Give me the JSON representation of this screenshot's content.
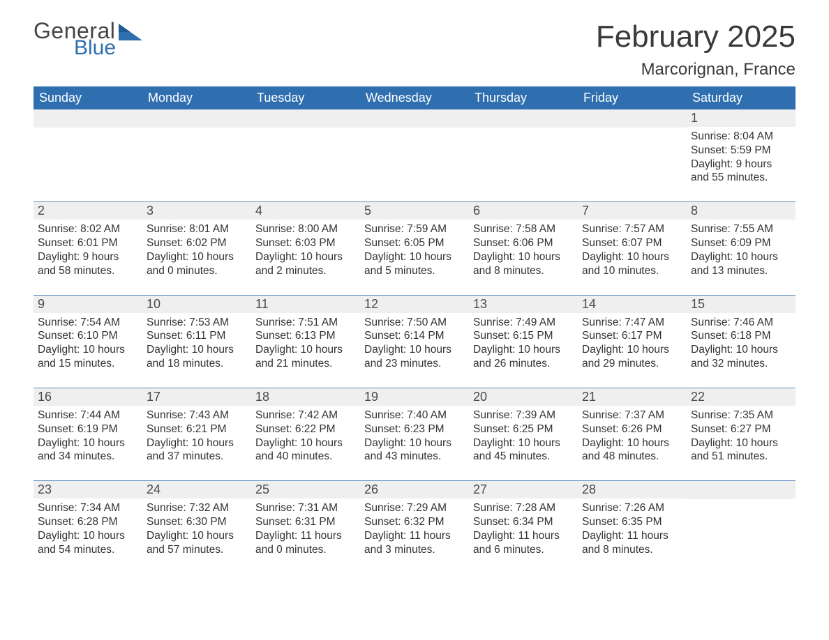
{
  "logo": {
    "word1": "General",
    "word2": "Blue",
    "color1": "#454545",
    "color2": "#2f6fb0"
  },
  "title": "February 2025",
  "location": "Marcorignan, France",
  "header_bg": "#2f6fb0",
  "day_header_bg": "#efefef",
  "week_border": "#5b8cc0",
  "text_color": "#333333",
  "weekdays": [
    "Sunday",
    "Monday",
    "Tuesday",
    "Wednesday",
    "Thursday",
    "Friday",
    "Saturday"
  ],
  "weeks": [
    [
      null,
      null,
      null,
      null,
      null,
      null,
      {
        "n": "1",
        "sunrise": "8:04 AM",
        "sunset": "5:59 PM",
        "dl1": "Daylight: 9 hours",
        "dl2": "and 55 minutes."
      }
    ],
    [
      {
        "n": "2",
        "sunrise": "8:02 AM",
        "sunset": "6:01 PM",
        "dl1": "Daylight: 9 hours",
        "dl2": "and 58 minutes."
      },
      {
        "n": "3",
        "sunrise": "8:01 AM",
        "sunset": "6:02 PM",
        "dl1": "Daylight: 10 hours",
        "dl2": "and 0 minutes."
      },
      {
        "n": "4",
        "sunrise": "8:00 AM",
        "sunset": "6:03 PM",
        "dl1": "Daylight: 10 hours",
        "dl2": "and 2 minutes."
      },
      {
        "n": "5",
        "sunrise": "7:59 AM",
        "sunset": "6:05 PM",
        "dl1": "Daylight: 10 hours",
        "dl2": "and 5 minutes."
      },
      {
        "n": "6",
        "sunrise": "7:58 AM",
        "sunset": "6:06 PM",
        "dl1": "Daylight: 10 hours",
        "dl2": "and 8 minutes."
      },
      {
        "n": "7",
        "sunrise": "7:57 AM",
        "sunset": "6:07 PM",
        "dl1": "Daylight: 10 hours",
        "dl2": "and 10 minutes."
      },
      {
        "n": "8",
        "sunrise": "7:55 AM",
        "sunset": "6:09 PM",
        "dl1": "Daylight: 10 hours",
        "dl2": "and 13 minutes."
      }
    ],
    [
      {
        "n": "9",
        "sunrise": "7:54 AM",
        "sunset": "6:10 PM",
        "dl1": "Daylight: 10 hours",
        "dl2": "and 15 minutes."
      },
      {
        "n": "10",
        "sunrise": "7:53 AM",
        "sunset": "6:11 PM",
        "dl1": "Daylight: 10 hours",
        "dl2": "and 18 minutes."
      },
      {
        "n": "11",
        "sunrise": "7:51 AM",
        "sunset": "6:13 PM",
        "dl1": "Daylight: 10 hours",
        "dl2": "and 21 minutes."
      },
      {
        "n": "12",
        "sunrise": "7:50 AM",
        "sunset": "6:14 PM",
        "dl1": "Daylight: 10 hours",
        "dl2": "and 23 minutes."
      },
      {
        "n": "13",
        "sunrise": "7:49 AM",
        "sunset": "6:15 PM",
        "dl1": "Daylight: 10 hours",
        "dl2": "and 26 minutes."
      },
      {
        "n": "14",
        "sunrise": "7:47 AM",
        "sunset": "6:17 PM",
        "dl1": "Daylight: 10 hours",
        "dl2": "and 29 minutes."
      },
      {
        "n": "15",
        "sunrise": "7:46 AM",
        "sunset": "6:18 PM",
        "dl1": "Daylight: 10 hours",
        "dl2": "and 32 minutes."
      }
    ],
    [
      {
        "n": "16",
        "sunrise": "7:44 AM",
        "sunset": "6:19 PM",
        "dl1": "Daylight: 10 hours",
        "dl2": "and 34 minutes."
      },
      {
        "n": "17",
        "sunrise": "7:43 AM",
        "sunset": "6:21 PM",
        "dl1": "Daylight: 10 hours",
        "dl2": "and 37 minutes."
      },
      {
        "n": "18",
        "sunrise": "7:42 AM",
        "sunset": "6:22 PM",
        "dl1": "Daylight: 10 hours",
        "dl2": "and 40 minutes."
      },
      {
        "n": "19",
        "sunrise": "7:40 AM",
        "sunset": "6:23 PM",
        "dl1": "Daylight: 10 hours",
        "dl2": "and 43 minutes."
      },
      {
        "n": "20",
        "sunrise": "7:39 AM",
        "sunset": "6:25 PM",
        "dl1": "Daylight: 10 hours",
        "dl2": "and 45 minutes."
      },
      {
        "n": "21",
        "sunrise": "7:37 AM",
        "sunset": "6:26 PM",
        "dl1": "Daylight: 10 hours",
        "dl2": "and 48 minutes."
      },
      {
        "n": "22",
        "sunrise": "7:35 AM",
        "sunset": "6:27 PM",
        "dl1": "Daylight: 10 hours",
        "dl2": "and 51 minutes."
      }
    ],
    [
      {
        "n": "23",
        "sunrise": "7:34 AM",
        "sunset": "6:28 PM",
        "dl1": "Daylight: 10 hours",
        "dl2": "and 54 minutes."
      },
      {
        "n": "24",
        "sunrise": "7:32 AM",
        "sunset": "6:30 PM",
        "dl1": "Daylight: 10 hours",
        "dl2": "and 57 minutes."
      },
      {
        "n": "25",
        "sunrise": "7:31 AM",
        "sunset": "6:31 PM",
        "dl1": "Daylight: 11 hours",
        "dl2": "and 0 minutes."
      },
      {
        "n": "26",
        "sunrise": "7:29 AM",
        "sunset": "6:32 PM",
        "dl1": "Daylight: 11 hours",
        "dl2": "and 3 minutes."
      },
      {
        "n": "27",
        "sunrise": "7:28 AM",
        "sunset": "6:34 PM",
        "dl1": "Daylight: 11 hours",
        "dl2": "and 6 minutes."
      },
      {
        "n": "28",
        "sunrise": "7:26 AM",
        "sunset": "6:35 PM",
        "dl1": "Daylight: 11 hours",
        "dl2": "and 8 minutes."
      },
      null
    ]
  ]
}
